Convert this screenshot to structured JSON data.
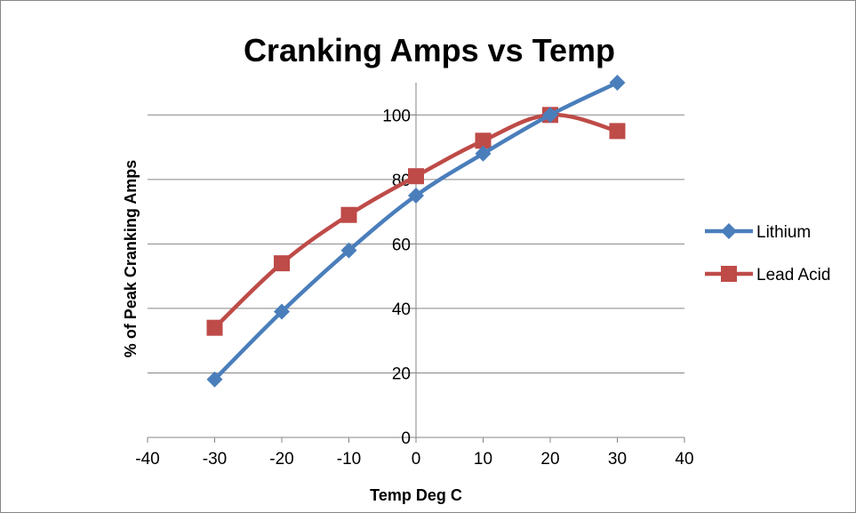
{
  "chart_data": {
    "type": "scatter",
    "title": "Cranking Amps vs Temp",
    "xlabel": "Temp Deg C",
    "ylabel": "% of Peak Cranking Amps",
    "xlim": [
      -40,
      40
    ],
    "ylim": [
      0,
      110
    ],
    "x_ticks": [
      "-40",
      "-30",
      "-20",
      "-10",
      "0",
      "10",
      "20",
      "30",
      "40"
    ],
    "y_ticks": [
      "0",
      "20",
      "40",
      "60",
      "80",
      "100"
    ],
    "grid": "horizontal",
    "legend_position": "right",
    "series": [
      {
        "name": "Lithium",
        "color": "#4a7ebb",
        "marker": "diamond",
        "x": [
          -30,
          -20,
          -10,
          0,
          10,
          20,
          30
        ],
        "y": [
          18,
          39,
          58,
          75,
          88,
          100,
          110
        ]
      },
      {
        "name": "Lead Acid",
        "color": "#be4b48",
        "marker": "square",
        "x": [
          -30,
          -20,
          -10,
          0,
          10,
          20,
          30
        ],
        "y": [
          34,
          54,
          69,
          81,
          92,
          100,
          95
        ]
      }
    ]
  }
}
